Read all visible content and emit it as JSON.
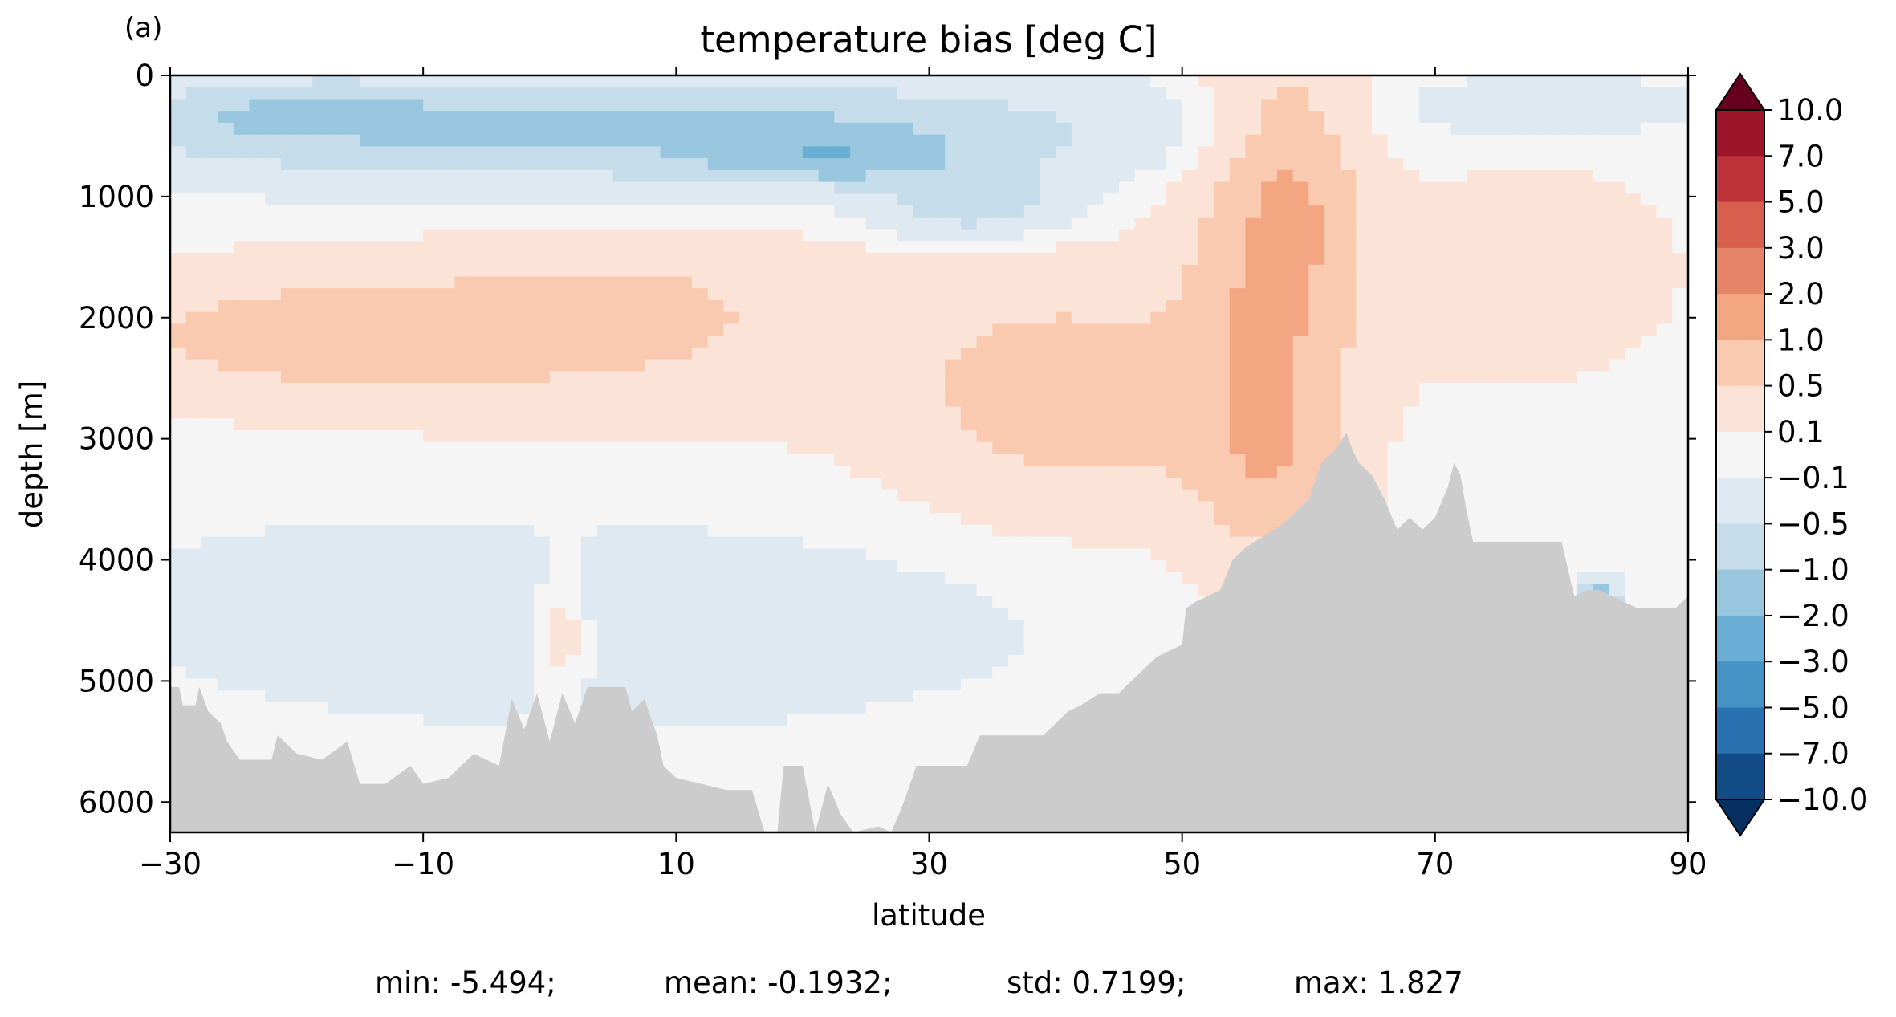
{
  "panel_label": "(a)",
  "chart_data": {
    "type": "heatmap",
    "title": "temperature bias [deg C]",
    "xlabel": "latitude",
    "ylabel": "depth [m]",
    "xlim": [
      -30,
      90
    ],
    "ylim": [
      6250,
      0
    ],
    "x_ticks": [
      "−30",
      "−10",
      "10",
      "30",
      "50",
      "70",
      "90"
    ],
    "x_tick_values": [
      -30,
      -10,
      10,
      30,
      50,
      70,
      90
    ],
    "y_ticks": [
      "0",
      "1000",
      "2000",
      "3000",
      "4000",
      "5000",
      "6000"
    ],
    "y_tick_values": [
      0,
      1000,
      2000,
      3000,
      4000,
      5000,
      6000
    ],
    "colorbar": {
      "levels": [
        -10.0,
        -7.0,
        -5.0,
        -3.0,
        -2.0,
        -1.0,
        -0.5,
        -0.1,
        0.1,
        0.5,
        1.0,
        2.0,
        3.0,
        5.0,
        7.0,
        10.0
      ],
      "tick_labels": [
        "10.0",
        "7.0",
        "5.0",
        "3.0",
        "2.0",
        "1.0",
        "0.5",
        "0.1",
        "−0.1",
        "−0.5",
        "−1.0",
        "−2.0",
        "−3.0",
        "−5.0",
        "−7.0",
        "−10.0"
      ],
      "colors_top_to_bottom": [
        "#67001f",
        "#9a1628",
        "#c0323a",
        "#d6604d",
        "#e58468",
        "#f4a582",
        "#f9c9b0",
        "#fbe4d7",
        "#f5f5f5",
        "#dfe9f1",
        "#c5dcea",
        "#98c6df",
        "#6aaed6",
        "#4592c5",
        "#2a71b2",
        "#134b86",
        "#053061"
      ],
      "extend": "both"
    },
    "land_color": "#cccccc",
    "stats": {
      "min": "min: -5.494;",
      "mean": "mean: -0.1932;",
      "std": "std: 0.7199;",
      "max": "max: 1.827"
    }
  }
}
